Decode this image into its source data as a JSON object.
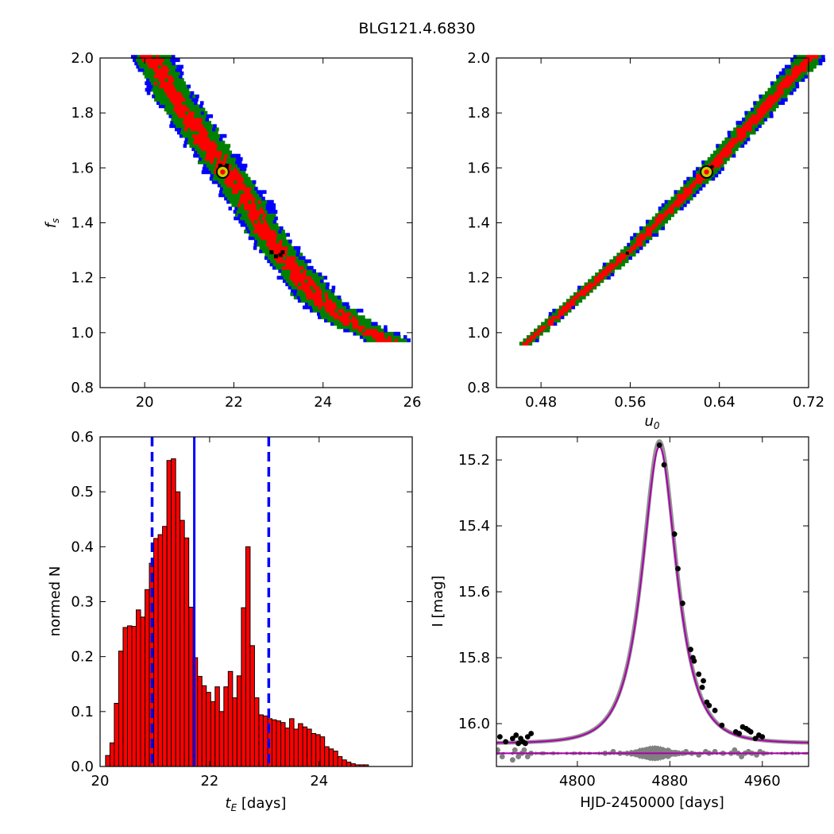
{
  "figure": {
    "title": "BLG121.4.6830"
  },
  "colors": {
    "blue": "#0000ff",
    "green": "#008000",
    "red": "#ff0000",
    "black": "#000000",
    "marker": "#cccc00",
    "model": "#aa00aa",
    "grey": "#808080"
  },
  "chart_data": [
    {
      "id": "tE-fs",
      "type": "heatmap",
      "xlim": [
        19,
        26
      ],
      "ylim": [
        0.8,
        2.0
      ],
      "xticks": [
        "20",
        "22",
        "24",
        "26"
      ],
      "yticks": [
        "0.8",
        "1.0",
        "1.2",
        "1.4",
        "1.6",
        "1.8",
        "2.0"
      ],
      "ylabel": "f_s",
      "best_fit": {
        "x": 21.75,
        "y": 1.585
      },
      "ridge": [
        [
          20.15,
          2.0
        ],
        [
          20.6,
          1.86
        ],
        [
          21.2,
          1.72
        ],
        [
          21.8,
          1.58
        ],
        [
          22.3,
          1.47
        ],
        [
          22.7,
          1.35
        ],
        [
          23.2,
          1.25
        ],
        [
          23.8,
          1.13
        ],
        [
          24.4,
          1.05
        ],
        [
          25.0,
          1.0
        ],
        [
          25.5,
          0.96
        ]
      ],
      "half_width": {
        "blue": 0.012,
        "green": 0.09,
        "red": 0.045
      }
    },
    {
      "id": "u0-fs",
      "type": "heatmap",
      "xlim": [
        0.44,
        0.72
      ],
      "ylim": [
        0.8,
        2.0
      ],
      "xticks": [
        "0.48",
        "0.56",
        "0.64",
        "0.72"
      ],
      "yticks": [
        "0.8",
        "1.0",
        "1.2",
        "1.4",
        "1.6",
        "1.8",
        "2.0"
      ],
      "xlabel": "u_0",
      "best_fit": {
        "x": 0.6285,
        "y": 1.585
      },
      "ridge": [
        [
          0.465,
          0.955
        ],
        [
          0.56,
          1.3
        ],
        [
          0.6285,
          1.585
        ],
        [
          0.72,
          2.0
        ]
      ]
    },
    {
      "id": "tE-hist",
      "type": "bar",
      "xlim": [
        20.0,
        25.7
      ],
      "ylim": [
        0.0,
        0.6
      ],
      "xticks": [
        "20",
        "22",
        "24"
      ],
      "yticks": [
        "0.0",
        "0.1",
        "0.2",
        "0.3",
        "0.4",
        "0.5",
        "0.6"
      ],
      "xlabel": "t_E [days]",
      "ylabel": "normed N",
      "bin_start": 20.1,
      "bin_width": 0.08,
      "values": [
        0.02,
        0.043,
        0.115,
        0.21,
        0.253,
        0.256,
        0.255,
        0.285,
        0.272,
        0.322,
        0.37,
        0.415,
        0.422,
        0.437,
        0.557,
        0.56,
        0.5,
        0.448,
        0.416,
        0.29,
        0.198,
        0.164,
        0.147,
        0.135,
        0.118,
        0.145,
        0.1,
        0.145,
        0.173,
        0.125,
        0.165,
        0.289,
        0.4,
        0.22,
        0.125,
        0.094,
        0.092,
        0.087,
        0.085,
        0.083,
        0.08,
        0.07,
        0.087,
        0.068,
        0.078,
        0.072,
        0.068,
        0.06,
        0.058,
        0.054,
        0.036,
        0.032,
        0.028,
        0.018,
        0.012,
        0.008,
        0.005,
        0.003,
        0.003,
        0.003
      ],
      "median": 21.72,
      "interval": [
        20.95,
        23.08
      ]
    },
    {
      "id": "lightcurve",
      "type": "scatter",
      "xlim": [
        4730,
        5000
      ],
      "ylim": [
        16.13,
        15.13
      ],
      "xticks": [
        "4800",
        "4880",
        "4960"
      ],
      "yticks": [
        "15.2",
        "15.4",
        "15.6",
        "15.8",
        "16.0"
      ],
      "xlabel": "HJD-2450000 [days]",
      "ylabel": "I [mag]",
      "model": {
        "t0": 4871,
        "u0": 0.63,
        "tE": 21.7,
        "I_base": 16.06,
        "fs": 1.585
      },
      "points": [
        [
          4733,
          16.04
        ],
        [
          4738,
          16.055
        ],
        [
          4744,
          16.045
        ],
        [
          4747,
          16.035
        ],
        [
          4749,
          16.06
        ],
        [
          4751,
          16.045
        ],
        [
          4753,
          16.055
        ],
        [
          4755,
          16.06
        ],
        [
          4757,
          16.04
        ],
        [
          4760,
          16.03
        ],
        [
          4871,
          15.155
        ],
        [
          4875,
          15.215
        ],
        [
          4884,
          15.425
        ],
        [
          4887,
          15.53
        ],
        [
          4891,
          15.635
        ],
        [
          4898,
          15.775
        ],
        [
          4900,
          15.8
        ],
        [
          4901,
          15.81
        ],
        [
          4905,
          15.85
        ],
        [
          4908,
          15.89
        ],
        [
          4909,
          15.87
        ],
        [
          4912,
          15.935
        ],
        [
          4914,
          15.945
        ],
        [
          4919,
          15.96
        ],
        [
          4925,
          16.005
        ],
        [
          4937,
          16.025
        ],
        [
          4940,
          16.03
        ],
        [
          4943,
          16.01
        ],
        [
          4946,
          16.015
        ],
        [
          4948,
          16.02
        ],
        [
          4950,
          16.025
        ],
        [
          4954,
          16.045
        ],
        [
          4957,
          16.035
        ],
        [
          4960,
          16.04
        ]
      ],
      "residual_baseline": 16.09
    }
  ]
}
